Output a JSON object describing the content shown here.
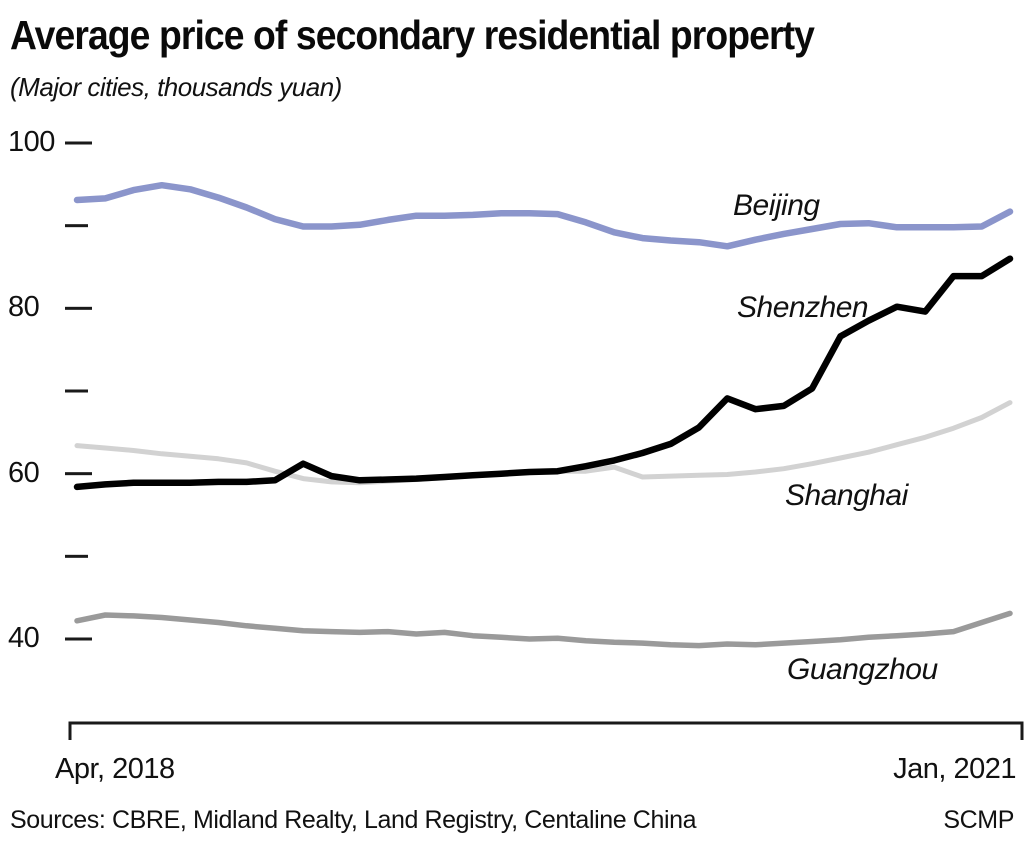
{
  "page": {
    "title": "Average price of secondary residential property",
    "subtitle": "(Major cities, thousands yuan)",
    "footer": {
      "sources": "Sources: CBRE, Midland Realty, Land Registry, Centaline China",
      "brand": "SCMP"
    }
  },
  "colors": {
    "text": "#111111",
    "axis": "#1a1a1a",
    "background": "#ffffff"
  },
  "chart_data": {
    "type": "line",
    "title": "Average price of secondary residential property",
    "subtitle": "(Major cities, thousands yuan)",
    "grid": false,
    "legend_position": "inline-labels-right",
    "x_axis": {
      "start_label": "Apr, 2018",
      "end_label": "Jan, 2021",
      "categories": [
        "Apr 2018",
        "May 2018",
        "Jun 2018",
        "Jul 2018",
        "Aug 2018",
        "Sep 2018",
        "Oct 2018",
        "Nov 2018",
        "Dec 2018",
        "Jan 2019",
        "Feb 2019",
        "Mar 2019",
        "Apr 2019",
        "May 2019",
        "Jun 2019",
        "Jul 2019",
        "Aug 2019",
        "Sep 2019",
        "Oct 2019",
        "Nov 2019",
        "Dec 2019",
        "Jan 2020",
        "Feb 2020",
        "Mar 2020",
        "Apr 2020",
        "May 2020",
        "Jun 2020",
        "Jul 2020",
        "Aug 2020",
        "Sep 2020",
        "Oct 2020",
        "Nov 2020",
        "Dec 2020",
        "Jan 2021"
      ]
    },
    "y_axis": {
      "min": 40,
      "max": 100,
      "labeled_ticks": [
        100,
        80,
        60,
        40
      ],
      "minor_ticks": [
        90,
        70,
        50
      ]
    },
    "series": [
      {
        "name": "Beijing",
        "color": "#8b95cb",
        "values": [
          93.1,
          93.3,
          94.3,
          94.9,
          94.4,
          93.4,
          92.2,
          90.8,
          89.9,
          89.9,
          90.1,
          90.7,
          91.2,
          91.2,
          91.3,
          91.5,
          91.5,
          91.4,
          90.4,
          89.2,
          88.5,
          88.2,
          88.0,
          87.5,
          88.3,
          89.0,
          89.6,
          90.2,
          90.3,
          89.8,
          89.8,
          89.8,
          89.9,
          91.7
        ]
      },
      {
        "name": "Shenzhen",
        "color": "#000000",
        "values": [
          58.4,
          58.7,
          58.9,
          58.9,
          58.9,
          59.0,
          59.0,
          59.2,
          61.2,
          59.7,
          59.2,
          59.3,
          59.4,
          59.6,
          59.8,
          60.0,
          60.2,
          60.3,
          60.9,
          61.6,
          62.5,
          63.6,
          65.6,
          69.1,
          67.8,
          68.2,
          70.3,
          76.6,
          78.5,
          80.2,
          79.6,
          83.9,
          83.9,
          86.0
        ]
      },
      {
        "name": "Shanghai",
        "color": "#d2d2d2",
        "values": [
          63.4,
          63.1,
          62.8,
          62.4,
          62.1,
          61.8,
          61.3,
          60.3,
          59.4,
          59.0,
          58.9,
          59.1,
          59.3,
          59.5,
          59.8,
          60.0,
          60.2,
          60.3,
          60.3,
          60.8,
          59.6,
          59.7,
          59.8,
          59.9,
          60.2,
          60.6,
          61.2,
          61.9,
          62.6,
          63.5,
          64.4,
          65.5,
          66.8,
          68.6
        ]
      },
      {
        "name": "Guangzhou",
        "color": "#9a9a9a",
        "values": [
          42.2,
          42.9,
          42.8,
          42.6,
          42.3,
          42.0,
          41.6,
          41.3,
          41.0,
          40.9,
          40.8,
          40.9,
          40.6,
          40.8,
          40.4,
          40.2,
          40.0,
          40.1,
          39.8,
          39.6,
          39.5,
          39.3,
          39.2,
          39.4,
          39.3,
          39.5,
          39.7,
          39.9,
          40.2,
          40.4,
          40.6,
          40.9,
          42.0,
          43.1
        ]
      }
    ]
  }
}
